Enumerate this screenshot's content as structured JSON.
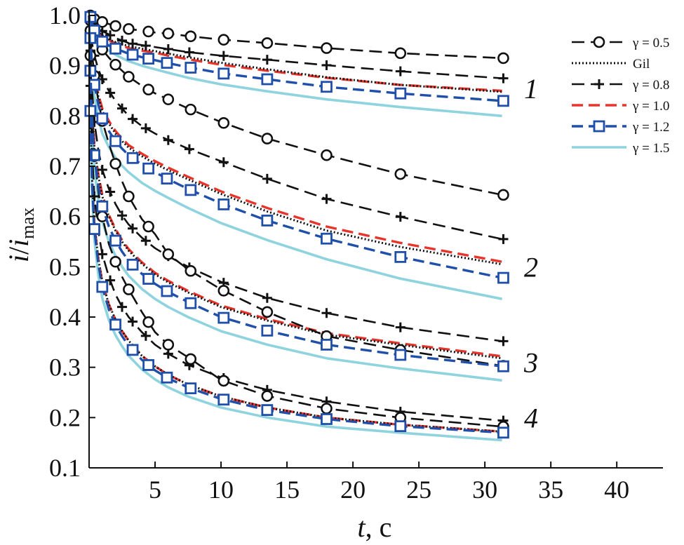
{
  "chart_data": {
    "type": "line",
    "xlabel": "t, c",
    "ylabel": "i/i_max",
    "xlim": [
      0,
      43.5
    ],
    "ylim": [
      0.1,
      1.0
    ],
    "xticks": [
      5,
      10,
      15,
      20,
      25,
      30,
      35,
      40
    ],
    "yticks": [
      0.1,
      0.2,
      0.3,
      0.4,
      0.5,
      0.6,
      0.7,
      0.8,
      0.9,
      1.0
    ],
    "ytick_labels": [
      "0.1",
      "0.2",
      "0.3",
      "0.4",
      "0.5",
      "0.6",
      "0.7",
      "0.8",
      "0.9",
      "1.0"
    ],
    "legend_position": "top-right",
    "colors": {
      "black": "#111111",
      "red": "#e8352b",
      "blue": "#1f4fa8",
      "cyan": "#8fd3de"
    },
    "x": [
      0,
      0.1,
      0.2,
      0.4,
      0.7,
      1.0,
      1.5,
      2.0,
      2.5,
      3.0,
      4.0,
      5.0,
      6.0,
      7.5,
      10.0,
      13.5,
      18.0,
      23.5,
      31.3
    ],
    "marker_x": {
      "circle": [
        0.1,
        0.4,
        1.0,
        2.0,
        3.0,
        4.5,
        6.0,
        7.7,
        10.2,
        13.5,
        18.0,
        23.6,
        31.4
      ],
      "square": [
        0.1,
        0.4,
        1.0,
        2.0,
        3.3,
        4.5,
        5.9,
        7.7,
        10.2,
        13.5,
        18.0,
        23.6,
        31.4
      ],
      "plus": [
        0.1,
        0.4,
        1.0,
        1.6,
        2.5,
        3.3,
        4.3,
        6.0,
        7.6,
        10.2,
        13.5,
        18.0,
        23.6,
        31.4
      ]
    },
    "curve_labels": [
      {
        "text": "1",
        "x": 33.5,
        "y": 0.855
      },
      {
        "text": "2",
        "x": 33.5,
        "y": 0.5
      },
      {
        "text": "3",
        "x": 33.5,
        "y": 0.31
      },
      {
        "text": "4",
        "x": 33.5,
        "y": 0.2
      }
    ],
    "series": [
      {
        "name": "γ = 0.5",
        "group": "1",
        "style": "black-dash-circle",
        "values": [
          1.0,
          1.0,
          0.997,
          0.993,
          0.99,
          0.987,
          0.983,
          0.979,
          0.976,
          0.973,
          0.97,
          0.966,
          0.964,
          0.959,
          0.952,
          0.945,
          0.935,
          0.925,
          0.915
        ]
      },
      {
        "name": "γ = 0.8",
        "group": "1",
        "style": "black-dash-plus",
        "values": [
          1.0,
          1.0,
          0.993,
          0.984,
          0.976,
          0.969,
          0.962,
          0.955,
          0.95,
          0.945,
          0.941,
          0.937,
          0.933,
          0.927,
          0.92,
          0.912,
          0.901,
          0.889,
          0.875
        ]
      },
      {
        "name": "Gil",
        "group": "1",
        "style": "black-dot",
        "values": [
          1.0,
          0.998,
          0.99,
          0.978,
          0.967,
          0.96,
          0.952,
          0.947,
          0.943,
          0.939,
          0.934,
          0.929,
          0.924,
          0.917,
          0.906,
          0.893,
          0.877,
          0.862,
          0.848
        ]
      },
      {
        "name": "γ = 1.0",
        "group": "1",
        "style": "red-dash",
        "values": [
          1.0,
          0.998,
          0.99,
          0.978,
          0.966,
          0.958,
          0.95,
          0.945,
          0.94,
          0.935,
          0.93,
          0.926,
          0.92,
          0.913,
          0.902,
          0.89,
          0.876,
          0.862,
          0.85
        ]
      },
      {
        "name": "γ = 1.2",
        "group": "1",
        "style": "blue-dash-square",
        "values": [
          1.0,
          0.997,
          0.986,
          0.97,
          0.956,
          0.948,
          0.94,
          0.934,
          0.929,
          0.924,
          0.917,
          0.911,
          0.905,
          0.897,
          0.885,
          0.873,
          0.858,
          0.845,
          0.83
        ]
      },
      {
        "name": "γ = 1.5",
        "group": "1",
        "style": "cyan-solid",
        "values": [
          1.0,
          0.996,
          0.982,
          0.964,
          0.95,
          0.94,
          0.93,
          0.922,
          0.915,
          0.909,
          0.9,
          0.893,
          0.886,
          0.876,
          0.863,
          0.849,
          0.833,
          0.818,
          0.8
        ]
      },
      {
        "name": "γ = 0.5",
        "group": "2",
        "style": "black-dash-circle",
        "values": [
          1.0,
          0.99,
          0.975,
          0.96,
          0.945,
          0.932,
          0.916,
          0.902,
          0.89,
          0.878,
          0.86,
          0.845,
          0.833,
          0.815,
          0.788,
          0.755,
          0.722,
          0.685,
          0.643
        ]
      },
      {
        "name": "γ = 0.8",
        "group": "2",
        "style": "black-dash-plus",
        "values": [
          1.0,
          0.975,
          0.948,
          0.92,
          0.893,
          0.873,
          0.85,
          0.83,
          0.815,
          0.8,
          0.78,
          0.765,
          0.752,
          0.735,
          0.71,
          0.675,
          0.635,
          0.6,
          0.555
        ]
      },
      {
        "name": "Gil",
        "group": "2",
        "style": "black-dot",
        "values": [
          1.0,
          0.96,
          0.92,
          0.875,
          0.838,
          0.81,
          0.785,
          0.765,
          0.75,
          0.737,
          0.72,
          0.705,
          0.692,
          0.674,
          0.645,
          0.61,
          0.572,
          0.54,
          0.505
        ]
      },
      {
        "name": "γ = 1.0",
        "group": "2",
        "style": "red-dash",
        "values": [
          1.0,
          0.962,
          0.922,
          0.88,
          0.843,
          0.815,
          0.79,
          0.77,
          0.755,
          0.742,
          0.725,
          0.71,
          0.697,
          0.679,
          0.65,
          0.617,
          0.58,
          0.548,
          0.51
        ]
      },
      {
        "name": "γ = 1.2",
        "group": "2",
        "style": "blue-dash-square",
        "values": [
          1.0,
          0.955,
          0.91,
          0.862,
          0.823,
          0.795,
          0.77,
          0.75,
          0.735,
          0.722,
          0.703,
          0.688,
          0.674,
          0.655,
          0.626,
          0.592,
          0.556,
          0.52,
          0.478
        ]
      },
      {
        "name": "γ = 1.5",
        "group": "2",
        "style": "cyan-solid",
        "values": [
          1.0,
          0.948,
          0.895,
          0.84,
          0.797,
          0.765,
          0.738,
          0.717,
          0.701,
          0.688,
          0.667,
          0.651,
          0.637,
          0.617,
          0.587,
          0.553,
          0.515,
          0.477,
          0.436
        ]
      },
      {
        "name": "γ = 0.5",
        "group": "3",
        "style": "black-dash-circle",
        "values": [
          1.0,
          0.97,
          0.93,
          0.88,
          0.83,
          0.79,
          0.745,
          0.705,
          0.67,
          0.64,
          0.595,
          0.565,
          0.525,
          0.495,
          0.455,
          0.41,
          0.362,
          0.335,
          0.303
        ]
      },
      {
        "name": "γ = 0.8",
        "group": "3",
        "style": "black-dash-plus",
        "values": [
          1.0,
          0.93,
          0.86,
          0.788,
          0.732,
          0.693,
          0.655,
          0.625,
          0.602,
          0.584,
          0.558,
          0.537,
          0.521,
          0.5,
          0.47,
          0.438,
          0.408,
          0.38,
          0.352
        ]
      },
      {
        "name": "Gil",
        "group": "3",
        "style": "black-dot",
        "values": [
          1.0,
          0.9,
          0.82,
          0.74,
          0.68,
          0.64,
          0.6,
          0.572,
          0.55,
          0.532,
          0.506,
          0.485,
          0.469,
          0.449,
          0.42,
          0.393,
          0.365,
          0.345,
          0.318
        ]
      },
      {
        "name": "γ = 1.0",
        "group": "3",
        "style": "red-dash",
        "values": [
          1.0,
          0.9,
          0.822,
          0.743,
          0.683,
          0.643,
          0.603,
          0.575,
          0.553,
          0.535,
          0.509,
          0.488,
          0.472,
          0.452,
          0.423,
          0.396,
          0.368,
          0.348,
          0.322
        ]
      },
      {
        "name": "γ = 1.2",
        "group": "3",
        "style": "blue-dash-square",
        "values": [
          1.0,
          0.89,
          0.805,
          0.722,
          0.66,
          0.62,
          0.58,
          0.552,
          0.53,
          0.512,
          0.486,
          0.466,
          0.45,
          0.43,
          0.4,
          0.373,
          0.345,
          0.325,
          0.302
        ]
      },
      {
        "name": "γ = 1.5",
        "group": "3",
        "style": "cyan-solid",
        "values": [
          1.0,
          0.875,
          0.782,
          0.695,
          0.632,
          0.59,
          0.55,
          0.522,
          0.5,
          0.482,
          0.456,
          0.436,
          0.42,
          0.4,
          0.372,
          0.345,
          0.318,
          0.298,
          0.274
        ]
      },
      {
        "name": "γ = 0.5",
        "group": "4",
        "style": "black-dash-circle",
        "values": [
          1.0,
          0.92,
          0.82,
          0.72,
          0.65,
          0.6,
          0.545,
          0.51,
          0.48,
          0.455,
          0.41,
          0.37,
          0.345,
          0.32,
          0.275,
          0.243,
          0.218,
          0.2,
          0.182
        ]
      },
      {
        "name": "γ = 0.8",
        "group": "4",
        "style": "black-dash-plus",
        "values": [
          1.0,
          0.86,
          0.74,
          0.64,
          0.57,
          0.525,
          0.48,
          0.445,
          0.42,
          0.4,
          0.37,
          0.345,
          0.327,
          0.305,
          0.28,
          0.255,
          0.232,
          0.212,
          0.194
        ]
      },
      {
        "name": "Gil",
        "group": "4",
        "style": "black-dot",
        "values": [
          1.0,
          0.82,
          0.69,
          0.585,
          0.515,
          0.47,
          0.425,
          0.395,
          0.372,
          0.353,
          0.323,
          0.302,
          0.285,
          0.266,
          0.242,
          0.22,
          0.2,
          0.186,
          0.172
        ]
      },
      {
        "name": "γ = 1.0",
        "group": "4",
        "style": "red-dash",
        "values": [
          1.0,
          0.82,
          0.69,
          0.585,
          0.515,
          0.47,
          0.425,
          0.395,
          0.372,
          0.353,
          0.323,
          0.302,
          0.285,
          0.266,
          0.242,
          0.22,
          0.2,
          0.186,
          0.172
        ]
      },
      {
        "name": "γ = 1.2",
        "group": "4",
        "style": "blue-dash-square",
        "values": [
          1.0,
          0.81,
          0.68,
          0.575,
          0.505,
          0.46,
          0.415,
          0.385,
          0.362,
          0.343,
          0.315,
          0.294,
          0.278,
          0.26,
          0.237,
          0.215,
          0.197,
          0.183,
          0.17
        ]
      },
      {
        "name": "γ = 1.5",
        "group": "4",
        "style": "cyan-solid",
        "values": [
          1.0,
          0.8,
          0.66,
          0.555,
          0.483,
          0.438,
          0.394,
          0.364,
          0.342,
          0.323,
          0.296,
          0.276,
          0.26,
          0.242,
          0.22,
          0.2,
          0.182,
          0.17,
          0.155
        ]
      }
    ],
    "legend": [
      {
        "label": "γ = 0.5",
        "style": "black-dash-circle"
      },
      {
        "label": "Gil",
        "style": "black-dot"
      },
      {
        "label": "γ = 0.8",
        "style": "black-dash-plus"
      },
      {
        "label": "γ = 1.0",
        "style": "red-dash"
      },
      {
        "label": "γ = 1.2",
        "style": "blue-dash-square"
      },
      {
        "label": "γ = 1.5",
        "style": "cyan-solid"
      }
    ]
  }
}
